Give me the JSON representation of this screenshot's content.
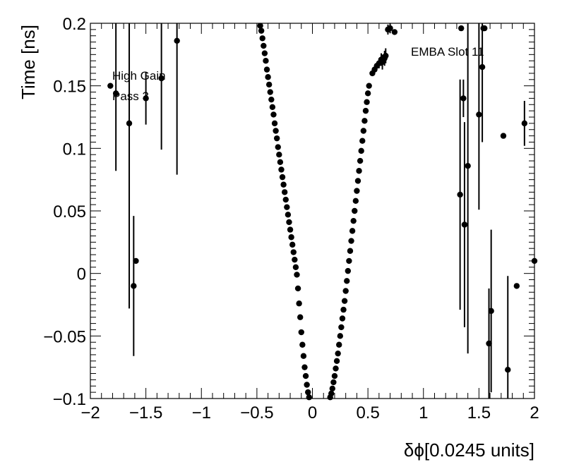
{
  "chart_data": {
    "type": "scatter",
    "title": "",
    "xlabel": "δϕ[0.0245 units]",
    "ylabel": "Time [ns]",
    "xlim": [
      -2,
      2
    ],
    "ylim": [
      -0.1,
      0.2
    ],
    "xticks": [
      -2,
      -1.5,
      -1,
      -0.5,
      0,
      0.5,
      1,
      1.5,
      2
    ],
    "xtick_labels": [
      "−2",
      "−1.5",
      "−1",
      "−0.5",
      "0",
      "0.5",
      "1",
      "1.5",
      "2"
    ],
    "yticks": [
      -0.1,
      -0.05,
      0,
      0.05,
      0.1,
      0.15,
      0.2
    ],
    "ytick_labels": [
      "−0.1",
      "−0.05",
      "0",
      "0.05",
      "0.1",
      "0.15",
      "0.2"
    ],
    "grid": false,
    "marker_color": "#000000",
    "annotations": [
      "High Gain",
      "Pass 3",
      "EMBA Slot 11"
    ],
    "series": [
      {
        "points": [
          {
            "x": -1.82,
            "y": 0.15
          },
          {
            "x": -1.77,
            "y": 0.144,
            "err": 0.062
          },
          {
            "x": -1.65,
            "y": 0.12,
            "err": 0.148
          },
          {
            "x": -1.61,
            "y": -0.01,
            "err": 0.056
          },
          {
            "x": -1.59,
            "y": 0.01
          },
          {
            "x": -1.5,
            "y": 0.14,
            "err": 0.021
          },
          {
            "x": -1.36,
            "y": 0.156,
            "err": 0.057
          },
          {
            "x": -1.22,
            "y": 0.186,
            "err": 0.107
          },
          {
            "x": -0.47,
            "y": 0.198
          },
          {
            "x": -0.46,
            "y": 0.194
          },
          {
            "x": -0.45,
            "y": 0.188
          },
          {
            "x": -0.44,
            "y": 0.182
          },
          {
            "x": -0.43,
            "y": 0.176
          },
          {
            "x": -0.42,
            "y": 0.17
          },
          {
            "x": -0.41,
            "y": 0.163
          },
          {
            "x": -0.4,
            "y": 0.157
          },
          {
            "x": -0.39,
            "y": 0.151
          },
          {
            "x": -0.38,
            "y": 0.145
          },
          {
            "x": -0.37,
            "y": 0.139
          },
          {
            "x": -0.36,
            "y": 0.133
          },
          {
            "x": -0.35,
            "y": 0.127
          },
          {
            "x": -0.34,
            "y": 0.12
          },
          {
            "x": -0.33,
            "y": 0.114
          },
          {
            "x": -0.32,
            "y": 0.108
          },
          {
            "x": -0.31,
            "y": 0.101
          },
          {
            "x": -0.3,
            "y": 0.095
          },
          {
            "x": -0.29,
            "y": 0.089
          },
          {
            "x": -0.28,
            "y": 0.083
          },
          {
            "x": -0.27,
            "y": 0.077
          },
          {
            "x": -0.26,
            "y": 0.071
          },
          {
            "x": -0.25,
            "y": 0.065
          },
          {
            "x": -0.24,
            "y": 0.059
          },
          {
            "x": -0.23,
            "y": 0.053
          },
          {
            "x": -0.22,
            "y": 0.047
          },
          {
            "x": -0.21,
            "y": 0.041
          },
          {
            "x": -0.2,
            "y": 0.035
          },
          {
            "x": -0.19,
            "y": 0.029
          },
          {
            "x": -0.18,
            "y": 0.023
          },
          {
            "x": -0.17,
            "y": 0.017
          },
          {
            "x": -0.16,
            "y": 0.011
          },
          {
            "x": -0.15,
            "y": 0.005
          },
          {
            "x": -0.14,
            "y": -0.001
          },
          {
            "x": -0.13,
            "y": -0.012
          },
          {
            "x": -0.12,
            "y": -0.024
          },
          {
            "x": -0.11,
            "y": -0.035
          },
          {
            "x": -0.1,
            "y": -0.047
          },
          {
            "x": -0.09,
            "y": -0.057
          },
          {
            "x": -0.08,
            "y": -0.066
          },
          {
            "x": -0.07,
            "y": -0.075
          },
          {
            "x": -0.06,
            "y": -0.082
          },
          {
            "x": -0.05,
            "y": -0.089
          },
          {
            "x": -0.04,
            "y": -0.095
          },
          {
            "x": -0.03,
            "y": -0.099
          },
          {
            "x": 0.16,
            "y": -0.099
          },
          {
            "x": 0.17,
            "y": -0.096
          },
          {
            "x": 0.18,
            "y": -0.092
          },
          {
            "x": 0.19,
            "y": -0.087
          },
          {
            "x": 0.2,
            "y": -0.082
          },
          {
            "x": 0.21,
            "y": -0.076
          },
          {
            "x": 0.22,
            "y": -0.07
          },
          {
            "x": 0.23,
            "y": -0.064
          },
          {
            "x": 0.24,
            "y": -0.057
          },
          {
            "x": 0.25,
            "y": -0.05
          },
          {
            "x": 0.26,
            "y": -0.043
          },
          {
            "x": 0.27,
            "y": -0.036
          },
          {
            "x": 0.28,
            "y": -0.029
          },
          {
            "x": 0.29,
            "y": -0.022
          },
          {
            "x": 0.3,
            "y": -0.014
          },
          {
            "x": 0.31,
            "y": -0.006
          },
          {
            "x": 0.32,
            "y": 0.002
          },
          {
            "x": 0.33,
            "y": 0.01
          },
          {
            "x": 0.34,
            "y": 0.018
          },
          {
            "x": 0.35,
            "y": 0.026
          },
          {
            "x": 0.36,
            "y": 0.034
          },
          {
            "x": 0.37,
            "y": 0.042
          },
          {
            "x": 0.38,
            "y": 0.05
          },
          {
            "x": 0.39,
            "y": 0.058
          },
          {
            "x": 0.4,
            "y": 0.066
          },
          {
            "x": 0.41,
            "y": 0.074
          },
          {
            "x": 0.42,
            "y": 0.082
          },
          {
            "x": 0.43,
            "y": 0.09
          },
          {
            "x": 0.44,
            "y": 0.098
          },
          {
            "x": 0.45,
            "y": 0.106
          },
          {
            "x": 0.46,
            "y": 0.114
          },
          {
            "x": 0.47,
            "y": 0.122
          },
          {
            "x": 0.48,
            "y": 0.13
          },
          {
            "x": 0.49,
            "y": 0.137
          },
          {
            "x": 0.5,
            "y": 0.144
          },
          {
            "x": 0.51,
            "y": 0.15
          },
          {
            "x": 0.54,
            "y": 0.16
          },
          {
            "x": 0.56,
            "y": 0.163
          },
          {
            "x": 0.58,
            "y": 0.166
          },
          {
            "x": 0.6,
            "y": 0.168,
            "err": 0.004
          },
          {
            "x": 0.62,
            "y": 0.171,
            "err": 0.005
          },
          {
            "x": 0.63,
            "y": 0.169,
            "err": 0.006
          },
          {
            "x": 0.65,
            "y": 0.172,
            "err": 0.006
          },
          {
            "x": 0.66,
            "y": 0.174,
            "err": 0.006
          },
          {
            "x": 0.68,
            "y": 0.195,
            "err": 0.004
          },
          {
            "x": 0.7,
            "y": 0.196,
            "err": 0.004
          },
          {
            "x": 0.74,
            "y": 0.193
          },
          {
            "x": 1.33,
            "y": 0.063,
            "err": 0.092
          },
          {
            "x": 1.34,
            "y": 0.196
          },
          {
            "x": 1.36,
            "y": 0.14,
            "err": 0.015
          },
          {
            "x": 1.37,
            "y": 0.039,
            "err": 0.082
          },
          {
            "x": 1.4,
            "y": 0.086,
            "err": 0.15
          },
          {
            "x": 1.5,
            "y": 0.127,
            "err": 0.076
          },
          {
            "x": 1.53,
            "y": 0.165,
            "err": 0.06
          },
          {
            "x": 1.54,
            "y": 0.196
          },
          {
            "x": 1.55,
            "y": 0.196
          },
          {
            "x": 1.59,
            "y": -0.056,
            "err": 0.044
          },
          {
            "x": 1.61,
            "y": -0.03,
            "err": 0.065
          },
          {
            "x": 1.72,
            "y": 0.11
          },
          {
            "x": 1.76,
            "y": -0.077,
            "err": 0.075
          },
          {
            "x": 1.84,
            "y": -0.01
          },
          {
            "x": 1.91,
            "y": 0.12,
            "err": 0.018
          },
          {
            "x": 2.0,
            "y": 0.01
          }
        ]
      }
    ]
  }
}
